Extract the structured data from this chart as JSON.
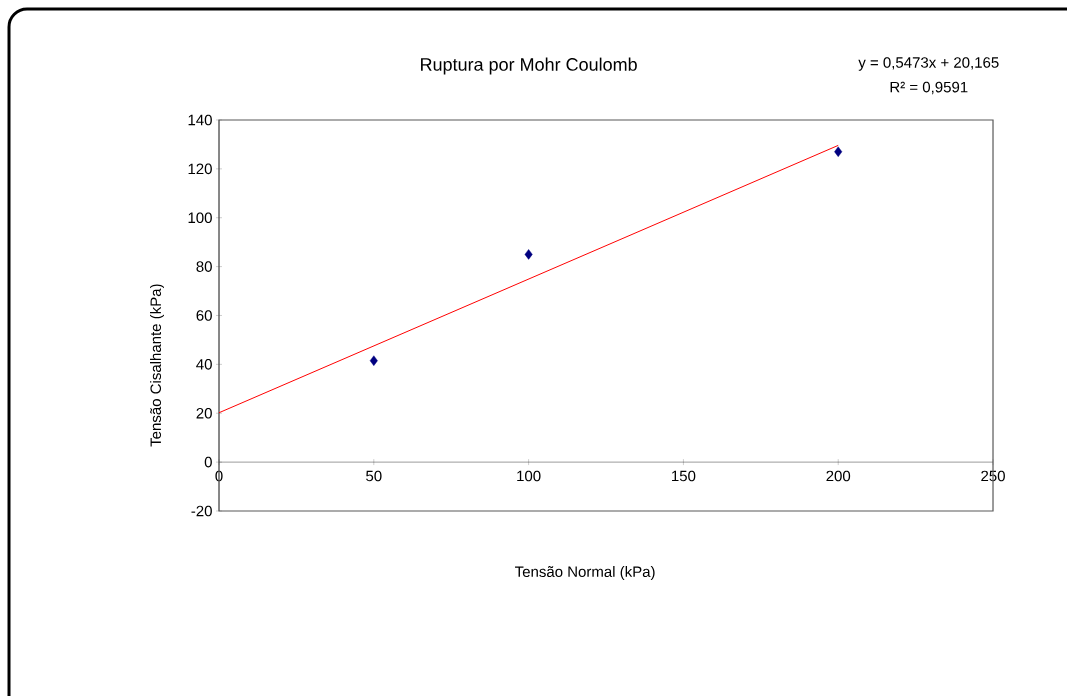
{
  "chart_data": {
    "type": "scatter",
    "title": "Ruptura por Mohr Coulomb",
    "xlabel": "Tensão Normal (kPa)",
    "ylabel": "Tensão Cisalhante (kPa)",
    "annotations": [
      "y = 0,5473x + 20,165",
      "R² = 0,9591"
    ],
    "series": [
      {
        "type": "scatter",
        "color": "#000080",
        "x": [
          50,
          100,
          200
        ],
        "values": [
          41.5,
          85,
          127
        ]
      },
      {
        "type": "line",
        "color": "#ff0000",
        "x": [
          0,
          200
        ],
        "values": [
          20.2,
          129.6
        ],
        "marker": "none"
      }
    ],
    "marker": "diamond",
    "xlim": [
      0,
      250
    ],
    "xticks": [
      0,
      50,
      100,
      150,
      200,
      250
    ],
    "ylim": [
      -20,
      140
    ],
    "yticks": [
      -20,
      0,
      20,
      40,
      60,
      80,
      100,
      120,
      140
    ]
  }
}
